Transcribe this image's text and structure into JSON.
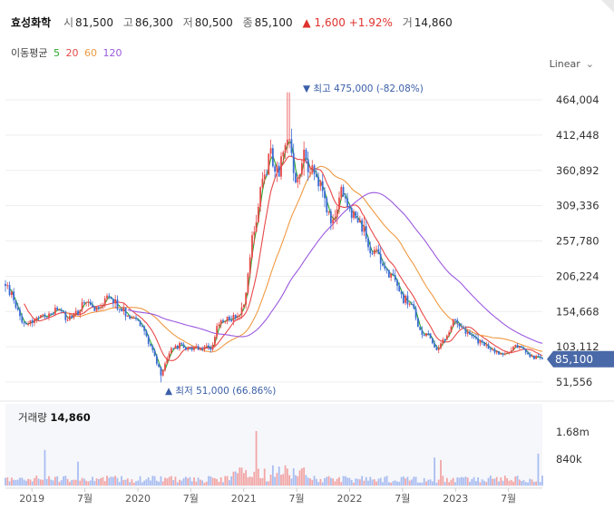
{
  "header": {
    "stock_name": "효성화학",
    "open_label": "시",
    "open": "81,500",
    "high_label": "고",
    "high": "86,300",
    "low_label": "저",
    "low": "80,500",
    "close_label": "종",
    "close": "85,100",
    "change": "▲ 1,600 +1.92%",
    "volume_label": "거",
    "volume": "14,860"
  },
  "ma_legend": {
    "title": "이동평균",
    "periods": [
      {
        "label": "5",
        "color": "#2aa52a"
      },
      {
        "label": "20",
        "color": "#e84848"
      },
      {
        "label": "60",
        "color": "#f09a42"
      },
      {
        "label": "120",
        "color": "#9b59e0"
      }
    ]
  },
  "scale_selector": {
    "label": "Linear"
  },
  "chart_data": {
    "type": "candlestick",
    "price_axis": {
      "ticks": [
        "464,004",
        "412,448",
        "360,892",
        "309,336",
        "257,780",
        "206,224",
        "154,668",
        "103,112",
        "51,556"
      ],
      "tick_values": [
        464004,
        412448,
        360892,
        309336,
        257780,
        206224,
        154668,
        103112,
        51556
      ],
      "current_price_label": "85,100",
      "current_price": 85100,
      "current_price_color": "#4a69a8"
    },
    "x_axis_ticks": [
      "2019",
      "7월",
      "2020",
      "7월",
      "2021",
      "7월",
      "2022",
      "7월",
      "2023",
      "7월"
    ],
    "annotations": {
      "high": {
        "text": "▼ 최고 475,000 (-82.08%)",
        "value": 475000
      },
      "low": {
        "text": "▲ 최저 51,000 (66.86%)",
        "value": 51000
      }
    },
    "price_series": [
      [
        2018.75,
        195000
      ],
      [
        2018.83,
        172000
      ],
      [
        2018.92,
        138000
      ],
      [
        2019.0,
        140000
      ],
      [
        2019.08,
        146000
      ],
      [
        2019.17,
        150000
      ],
      [
        2019.25,
        158000
      ],
      [
        2019.33,
        144000
      ],
      [
        2019.42,
        152000
      ],
      [
        2019.5,
        166000
      ],
      [
        2019.58,
        158000
      ],
      [
        2019.67,
        168000
      ],
      [
        2019.75,
        176000
      ],
      [
        2019.83,
        158000
      ],
      [
        2019.92,
        150000
      ],
      [
        2020.0,
        140000
      ],
      [
        2020.08,
        118000
      ],
      [
        2020.15,
        95000
      ],
      [
        2020.22,
        62000
      ],
      [
        2020.3,
        98000
      ],
      [
        2020.4,
        106000
      ],
      [
        2020.5,
        99000
      ],
      [
        2020.6,
        100000
      ],
      [
        2020.7,
        103000
      ],
      [
        2020.75,
        132000
      ],
      [
        2020.83,
        142000
      ],
      [
        2020.92,
        148000
      ],
      [
        2021.0,
        158000
      ],
      [
        2021.08,
        265000
      ],
      [
        2021.17,
        335000
      ],
      [
        2021.25,
        390000
      ],
      [
        2021.33,
        350000
      ],
      [
        2021.42,
        420000
      ],
      [
        2021.5,
        340000
      ],
      [
        2021.58,
        380000
      ],
      [
        2021.67,
        350000
      ],
      [
        2021.75,
        330000
      ],
      [
        2021.83,
        285000
      ],
      [
        2021.92,
        330000
      ],
      [
        2022.0,
        300000
      ],
      [
        2022.08,
        290000
      ],
      [
        2022.17,
        255000
      ],
      [
        2022.25,
        240000
      ],
      [
        2022.33,
        220000
      ],
      [
        2022.42,
        200000
      ],
      [
        2022.5,
        175000
      ],
      [
        2022.58,
        165000
      ],
      [
        2022.67,
        125000
      ],
      [
        2022.75,
        118000
      ],
      [
        2022.83,
        98000
      ],
      [
        2022.92,
        120000
      ],
      [
        2023.0,
        145000
      ],
      [
        2023.08,
        130000
      ],
      [
        2023.17,
        115000
      ],
      [
        2023.25,
        108000
      ],
      [
        2023.33,
        100000
      ],
      [
        2023.42,
        92000
      ],
      [
        2023.5,
        96000
      ],
      [
        2023.58,
        105000
      ],
      [
        2023.67,
        95000
      ],
      [
        2023.75,
        88000
      ],
      [
        2023.8,
        85100
      ]
    ],
    "high_point": [
      2021.42,
      475000
    ],
    "low_point": [
      2020.22,
      51000
    ],
    "moving_averages": [
      {
        "period": "5",
        "color": "#2aa52a"
      },
      {
        "period": "20",
        "color": "#e84848"
      },
      {
        "period": "60",
        "color": "#f09a42"
      },
      {
        "period": "120",
        "color": "#9b59e0"
      }
    ],
    "volume_panel": {
      "label": "거래량",
      "value": "14,860",
      "ticks": [
        "1.68m",
        "840k"
      ],
      "tick_values": [
        1680000,
        840000
      ]
    }
  }
}
